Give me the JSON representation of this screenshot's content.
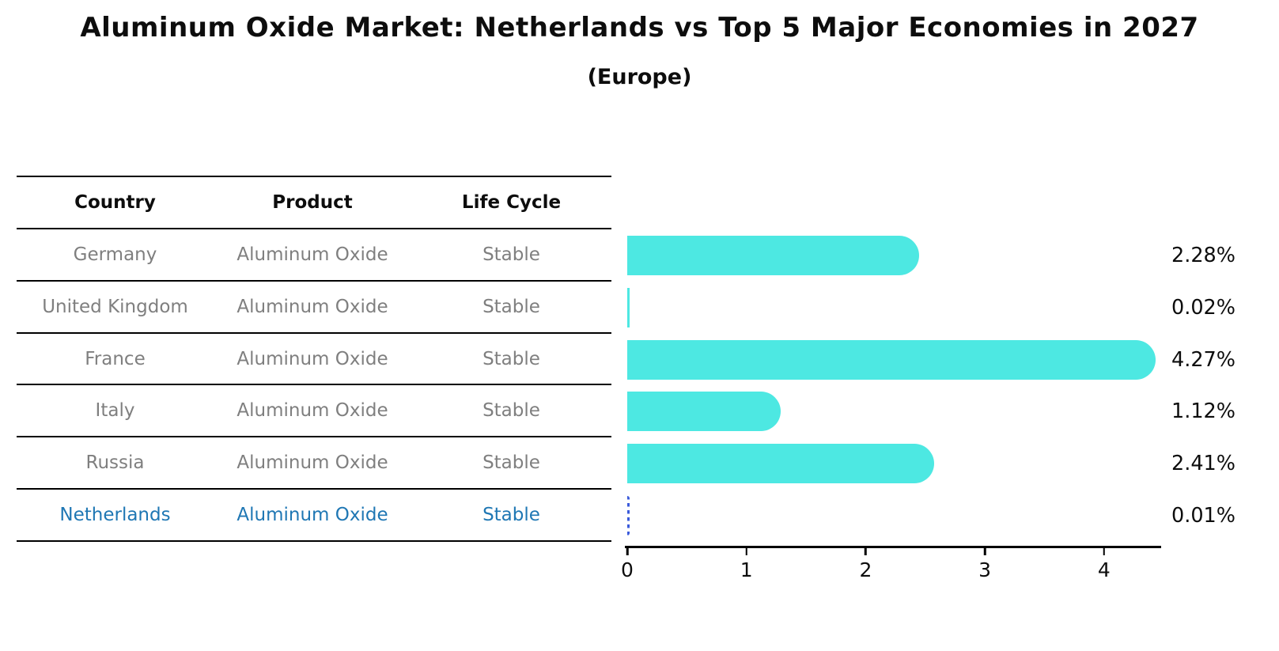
{
  "title": "Aluminum Oxide Market: Netherlands vs Top 5 Major Economies in 2027",
  "subtitle": "(Europe)",
  "table": {
    "headers": [
      "Country",
      "Product",
      "Life Cycle"
    ],
    "rows": [
      {
        "country": "Germany",
        "product": "Aluminum Oxide",
        "life_cycle": "Stable",
        "highlighted": false
      },
      {
        "country": "United Kingdom",
        "product": "Aluminum Oxide",
        "life_cycle": "Stable",
        "highlighted": false
      },
      {
        "country": "France",
        "product": "Aluminum Oxide",
        "life_cycle": "Stable",
        "highlighted": false
      },
      {
        "country": "Italy",
        "product": "Aluminum Oxide",
        "life_cycle": "Stable",
        "highlighted": false
      },
      {
        "country": "Russia",
        "product": "Aluminum Oxide",
        "life_cycle": "Stable",
        "highlighted": false
      },
      {
        "country": "Netherlands",
        "product": "Aluminum Oxide",
        "life_cycle": "Stable",
        "highlighted": true
      }
    ]
  },
  "chart_data": {
    "type": "bar",
    "orientation": "horizontal",
    "categories": [
      "Germany",
      "United Kingdom",
      "France",
      "Italy",
      "Russia",
      "Netherlands"
    ],
    "values": [
      2.28,
      0.02,
      4.27,
      1.12,
      2.41,
      0.01
    ],
    "value_labels": [
      "2.28%",
      "0.02%",
      "4.27%",
      "1.12%",
      "2.41%",
      "0.01%"
    ],
    "x_ticks": [
      "0",
      "1",
      "2",
      "3",
      "4"
    ],
    "xlim": [
      0,
      4.48
    ],
    "grid": false,
    "legend": false,
    "bar_color": "#4DE8E2",
    "highlight_dash_color": "#3b5bdb",
    "highlight_text_color": "#1f77b4",
    "highlight_index": 5
  }
}
